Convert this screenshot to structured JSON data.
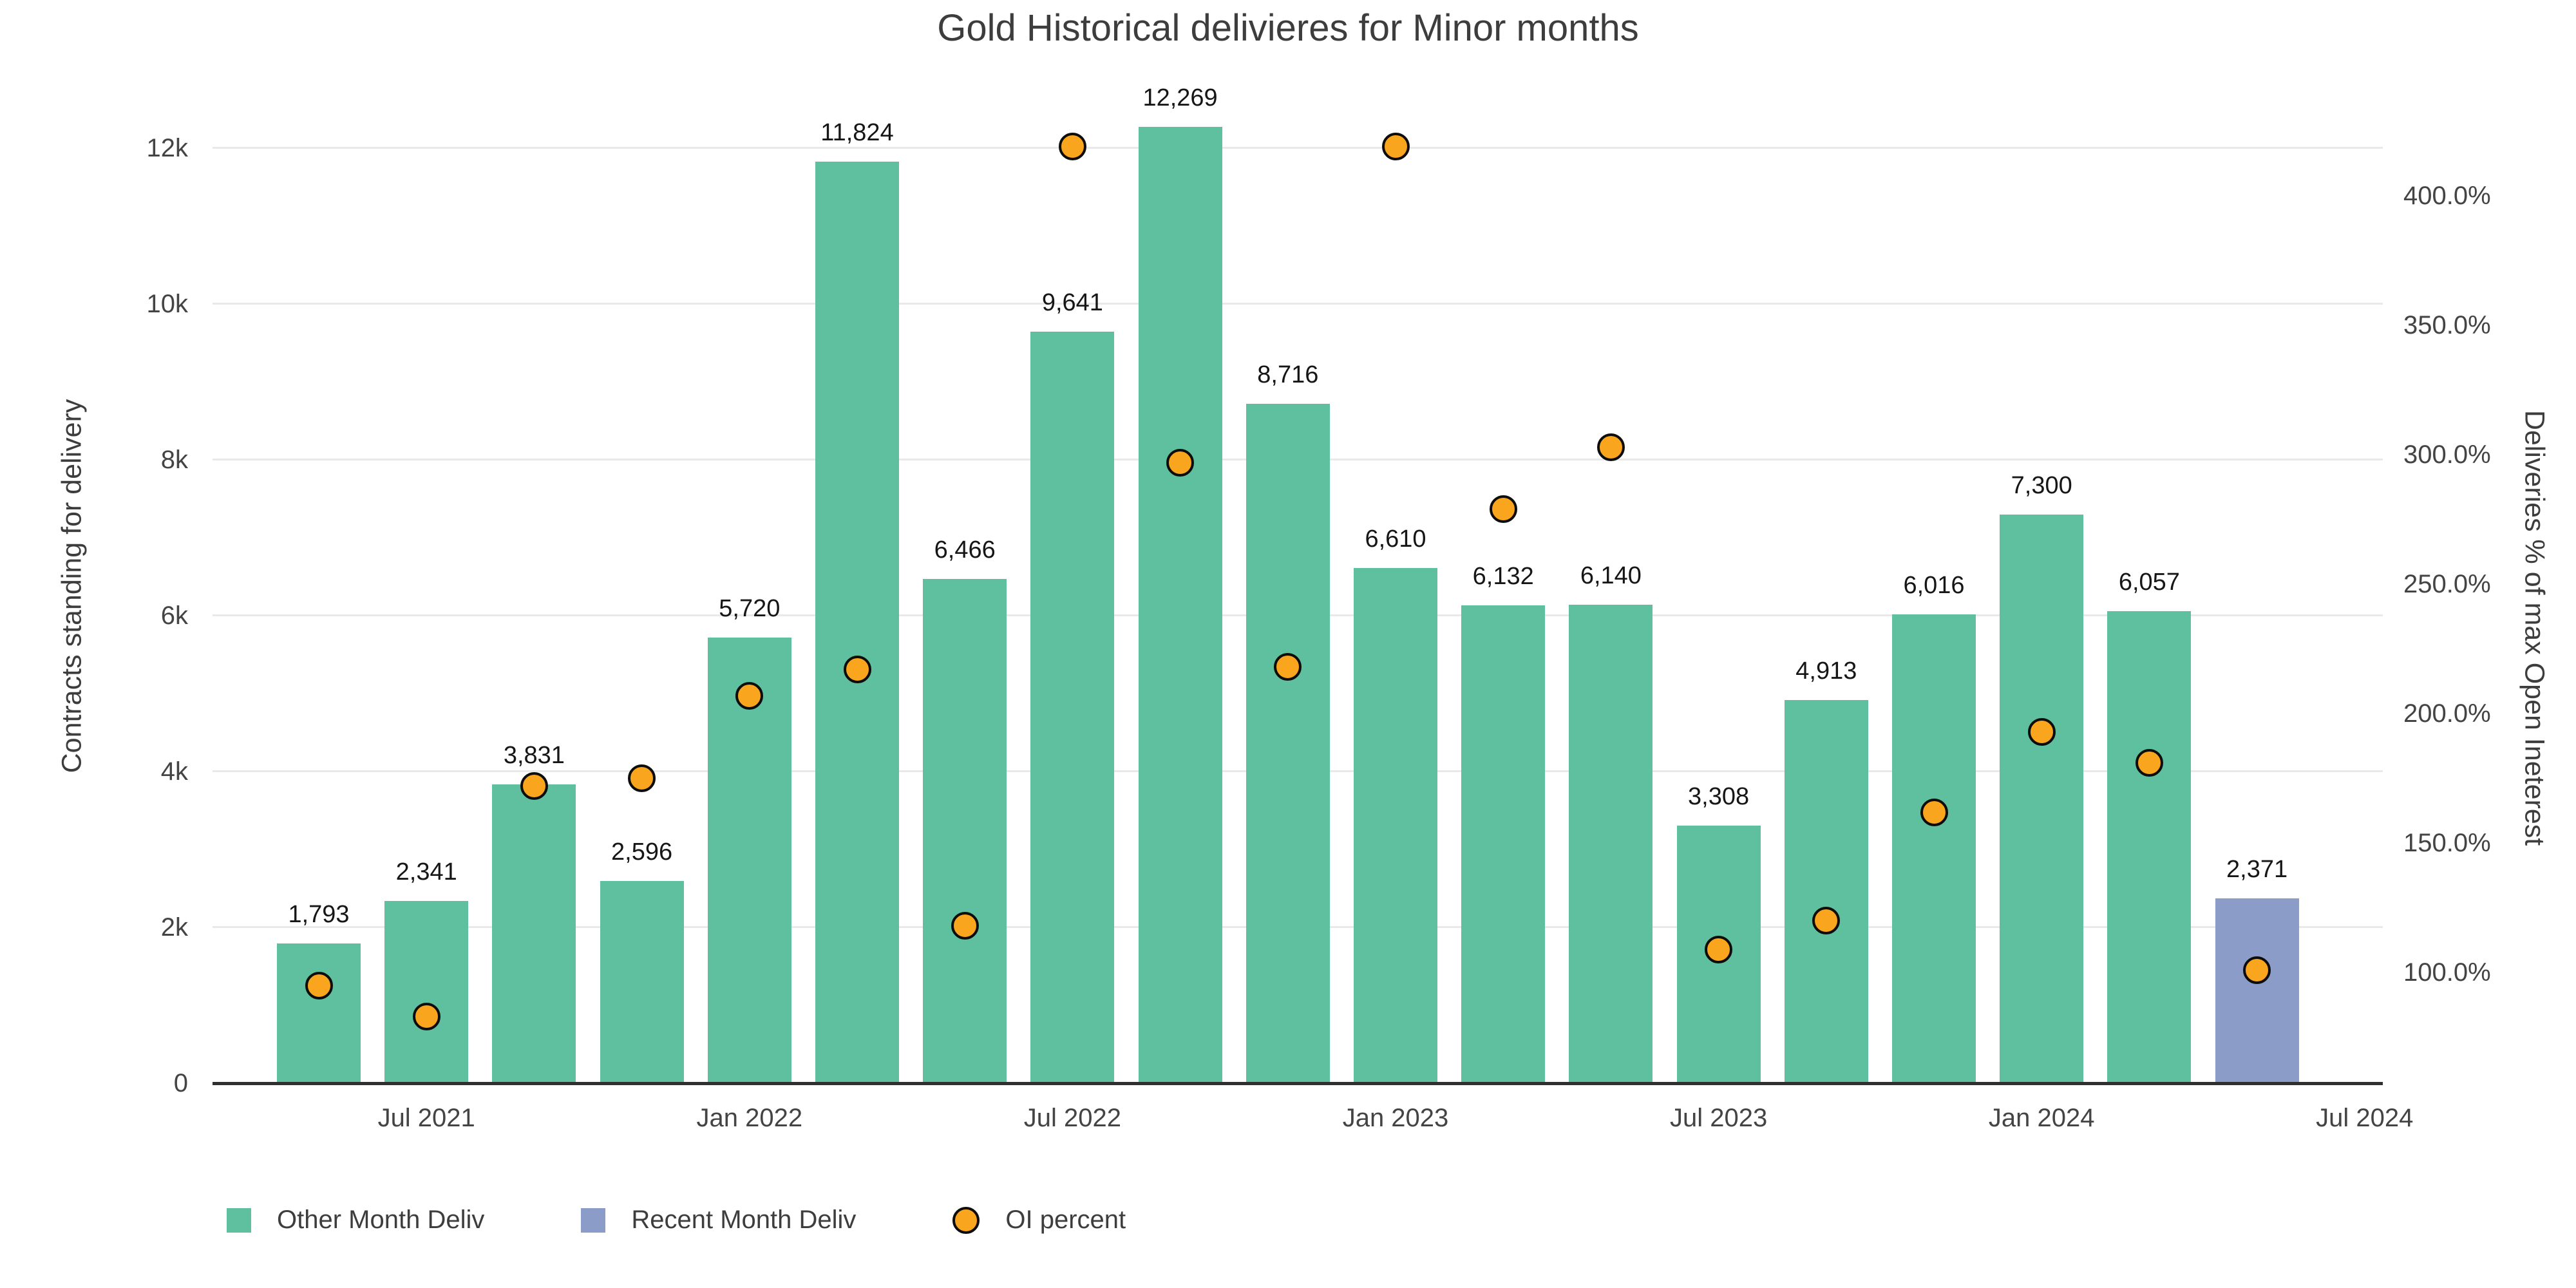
{
  "chart_data": {
    "type": "bar",
    "title": "Gold Historical delivieres for Minor months",
    "categories": [
      "May 2021",
      "Jul 2021",
      "Sep 2021",
      "Nov 2021",
      "Jan 2022",
      "Mar 2022",
      "May 2022",
      "Jul 2022",
      "Sep 2022",
      "Nov 2022",
      "Jan 2023",
      "Mar 2023",
      "May 2023",
      "Jul 2023",
      "Sep 2023",
      "Nov 2023",
      "Jan 2024",
      "Mar 2024",
      "May 2024"
    ],
    "series": [
      {
        "name": "Other Month Deliv",
        "type": "bar",
        "axis": "left",
        "color": "#5FC09F",
        "values": [
          1793,
          2341,
          3831,
          2596,
          5720,
          11824,
          6466,
          9641,
          12269,
          8716,
          6610,
          6132,
          6140,
          3308,
          4913,
          6016,
          7300,
          6057,
          null
        ]
      },
      {
        "name": "Recent Month Deliv",
        "type": "bar",
        "axis": "left",
        "color": "#8B9CC9",
        "values": [
          null,
          null,
          null,
          null,
          null,
          null,
          null,
          null,
          null,
          null,
          null,
          null,
          null,
          null,
          null,
          null,
          null,
          null,
          2371
        ]
      },
      {
        "name": "OI percent",
        "type": "scatter",
        "axis": "right",
        "color": "#F9A51D",
        "marker_outline": "#0D0D0D",
        "unit": "%",
        "values": [
          95,
          83,
          172,
          175,
          207,
          217,
          118,
          419,
          297,
          218,
          419,
          279,
          303,
          109,
          120,
          162,
          193,
          181,
          101
        ]
      }
    ],
    "bar_value_labels": [
      "1,793",
      "2,341",
      "3,831",
      "2,596",
      "5,720",
      "11,824",
      "6,466",
      "9,641",
      "12,269",
      "8,716",
      "6,610",
      "6,132",
      "6,140",
      "3,308",
      "4,913",
      "6,016",
      "7,300",
      "6,057",
      "2,371"
    ],
    "left_axis": {
      "title": "Contracts standing for delivery",
      "range": [
        0,
        12700
      ],
      "ticks": [
        {
          "value": 0,
          "label": "0"
        },
        {
          "value": 2000,
          "label": "2k"
        },
        {
          "value": 4000,
          "label": "4k"
        },
        {
          "value": 6000,
          "label": "6k"
        },
        {
          "value": 8000,
          "label": "8k"
        },
        {
          "value": 10000,
          "label": "10k"
        },
        {
          "value": 12000,
          "label": "12k"
        }
      ]
    },
    "right_axis": {
      "title": "Deliveries % of max Open Ineterest",
      "range": [
        57.3,
        439.6
      ],
      "ticks": [
        {
          "value": 100,
          "label": "100.0%"
        },
        {
          "value": 150,
          "label": "150.0%"
        },
        {
          "value": 200,
          "label": "200.0%"
        },
        {
          "value": 250,
          "label": "250.0%"
        },
        {
          "value": 300,
          "label": "300.0%"
        },
        {
          "value": 350,
          "label": "350.0%"
        },
        {
          "value": 400,
          "label": "400.0%"
        }
      ]
    },
    "x_axis": {
      "ticks": [
        {
          "position": 1,
          "label": "Jul 2021"
        },
        {
          "position": 4,
          "label": "Jan 2022"
        },
        {
          "position": 7,
          "label": "Jul 2022"
        },
        {
          "position": 10,
          "label": "Jan 2023"
        },
        {
          "position": 13,
          "label": "Jul 2023"
        },
        {
          "position": 16,
          "label": "Jan 2024"
        },
        {
          "position": 19,
          "label": "Jul 2024"
        }
      ]
    },
    "legend": {
      "position": "bottom-left",
      "items": [
        {
          "label": "Other Month Deliv",
          "marker": "square",
          "color": "#5FC09F"
        },
        {
          "label": "Recent Month Deliv",
          "marker": "square",
          "color": "#8B9CC9"
        },
        {
          "label": "OI percent",
          "marker": "circle",
          "color": "#F9A51D"
        }
      ]
    },
    "grid": true,
    "colors": {
      "grid": "#E9E9E9",
      "axis_line": "#2F2F2F",
      "tick_text": "#444444",
      "bar_label_text": "#161616",
      "title_text": "#3D3D3D",
      "background": "#FFFFFF"
    }
  }
}
